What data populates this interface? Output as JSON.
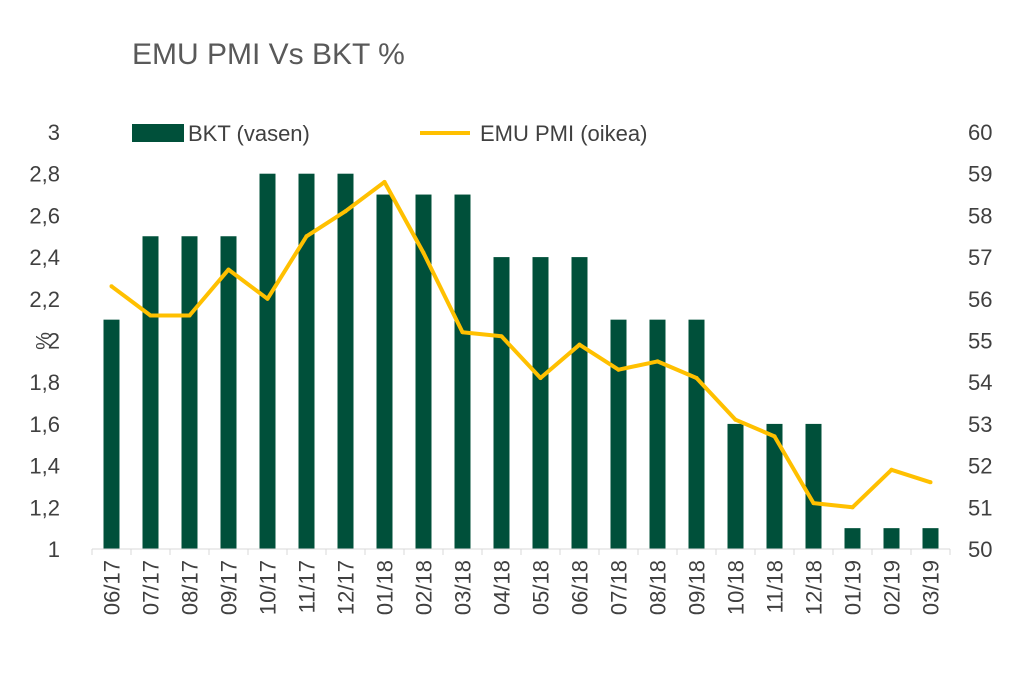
{
  "chart_data": {
    "type": "bar+line",
    "title": "EMU PMI Vs BKT %",
    "ylabel_left": "%",
    "categories": [
      "06/17",
      "07/17",
      "08/17",
      "09/17",
      "10/17",
      "11/17",
      "12/17",
      "01/18",
      "02/18",
      "03/18",
      "04/18",
      "05/18",
      "06/18",
      "07/18",
      "08/18",
      "09/18",
      "10/18",
      "11/18",
      "12/18",
      "01/19",
      "02/19",
      "03/19"
    ],
    "series": [
      {
        "name": "BKT (vasen)",
        "kind": "bar",
        "axis": "left",
        "color": "#00503A",
        "values": [
          2.1,
          2.5,
          2.5,
          2.5,
          2.8,
          2.8,
          2.8,
          2.7,
          2.7,
          2.7,
          2.4,
          2.4,
          2.4,
          2.1,
          2.1,
          2.1,
          1.6,
          1.6,
          1.6,
          1.1,
          1.1,
          1.1
        ]
      },
      {
        "name": "EMU PMI (oikea)",
        "kind": "line",
        "axis": "right",
        "color": "#FFC000",
        "values": [
          56.3,
          55.6,
          55.6,
          56.7,
          56.0,
          57.5,
          58.1,
          58.8,
          57.1,
          55.2,
          55.1,
          54.1,
          54.9,
          54.3,
          54.5,
          54.1,
          53.1,
          52.7,
          51.1,
          51.0,
          51.9,
          51.6
        ]
      }
    ],
    "ylim_left": [
      1,
      3
    ],
    "yticks_left": [
      "1",
      "1,2",
      "1,4",
      "1,6",
      "1,8",
      "2",
      "2,2",
      "2,4",
      "2,6",
      "2,8",
      "3"
    ],
    "ylim_right": [
      50,
      60
    ],
    "yticks_right": [
      "50",
      "51",
      "52",
      "53",
      "54",
      "55",
      "56",
      "57",
      "58",
      "59",
      "60"
    ],
    "grid": false,
    "legend_position": "top"
  }
}
